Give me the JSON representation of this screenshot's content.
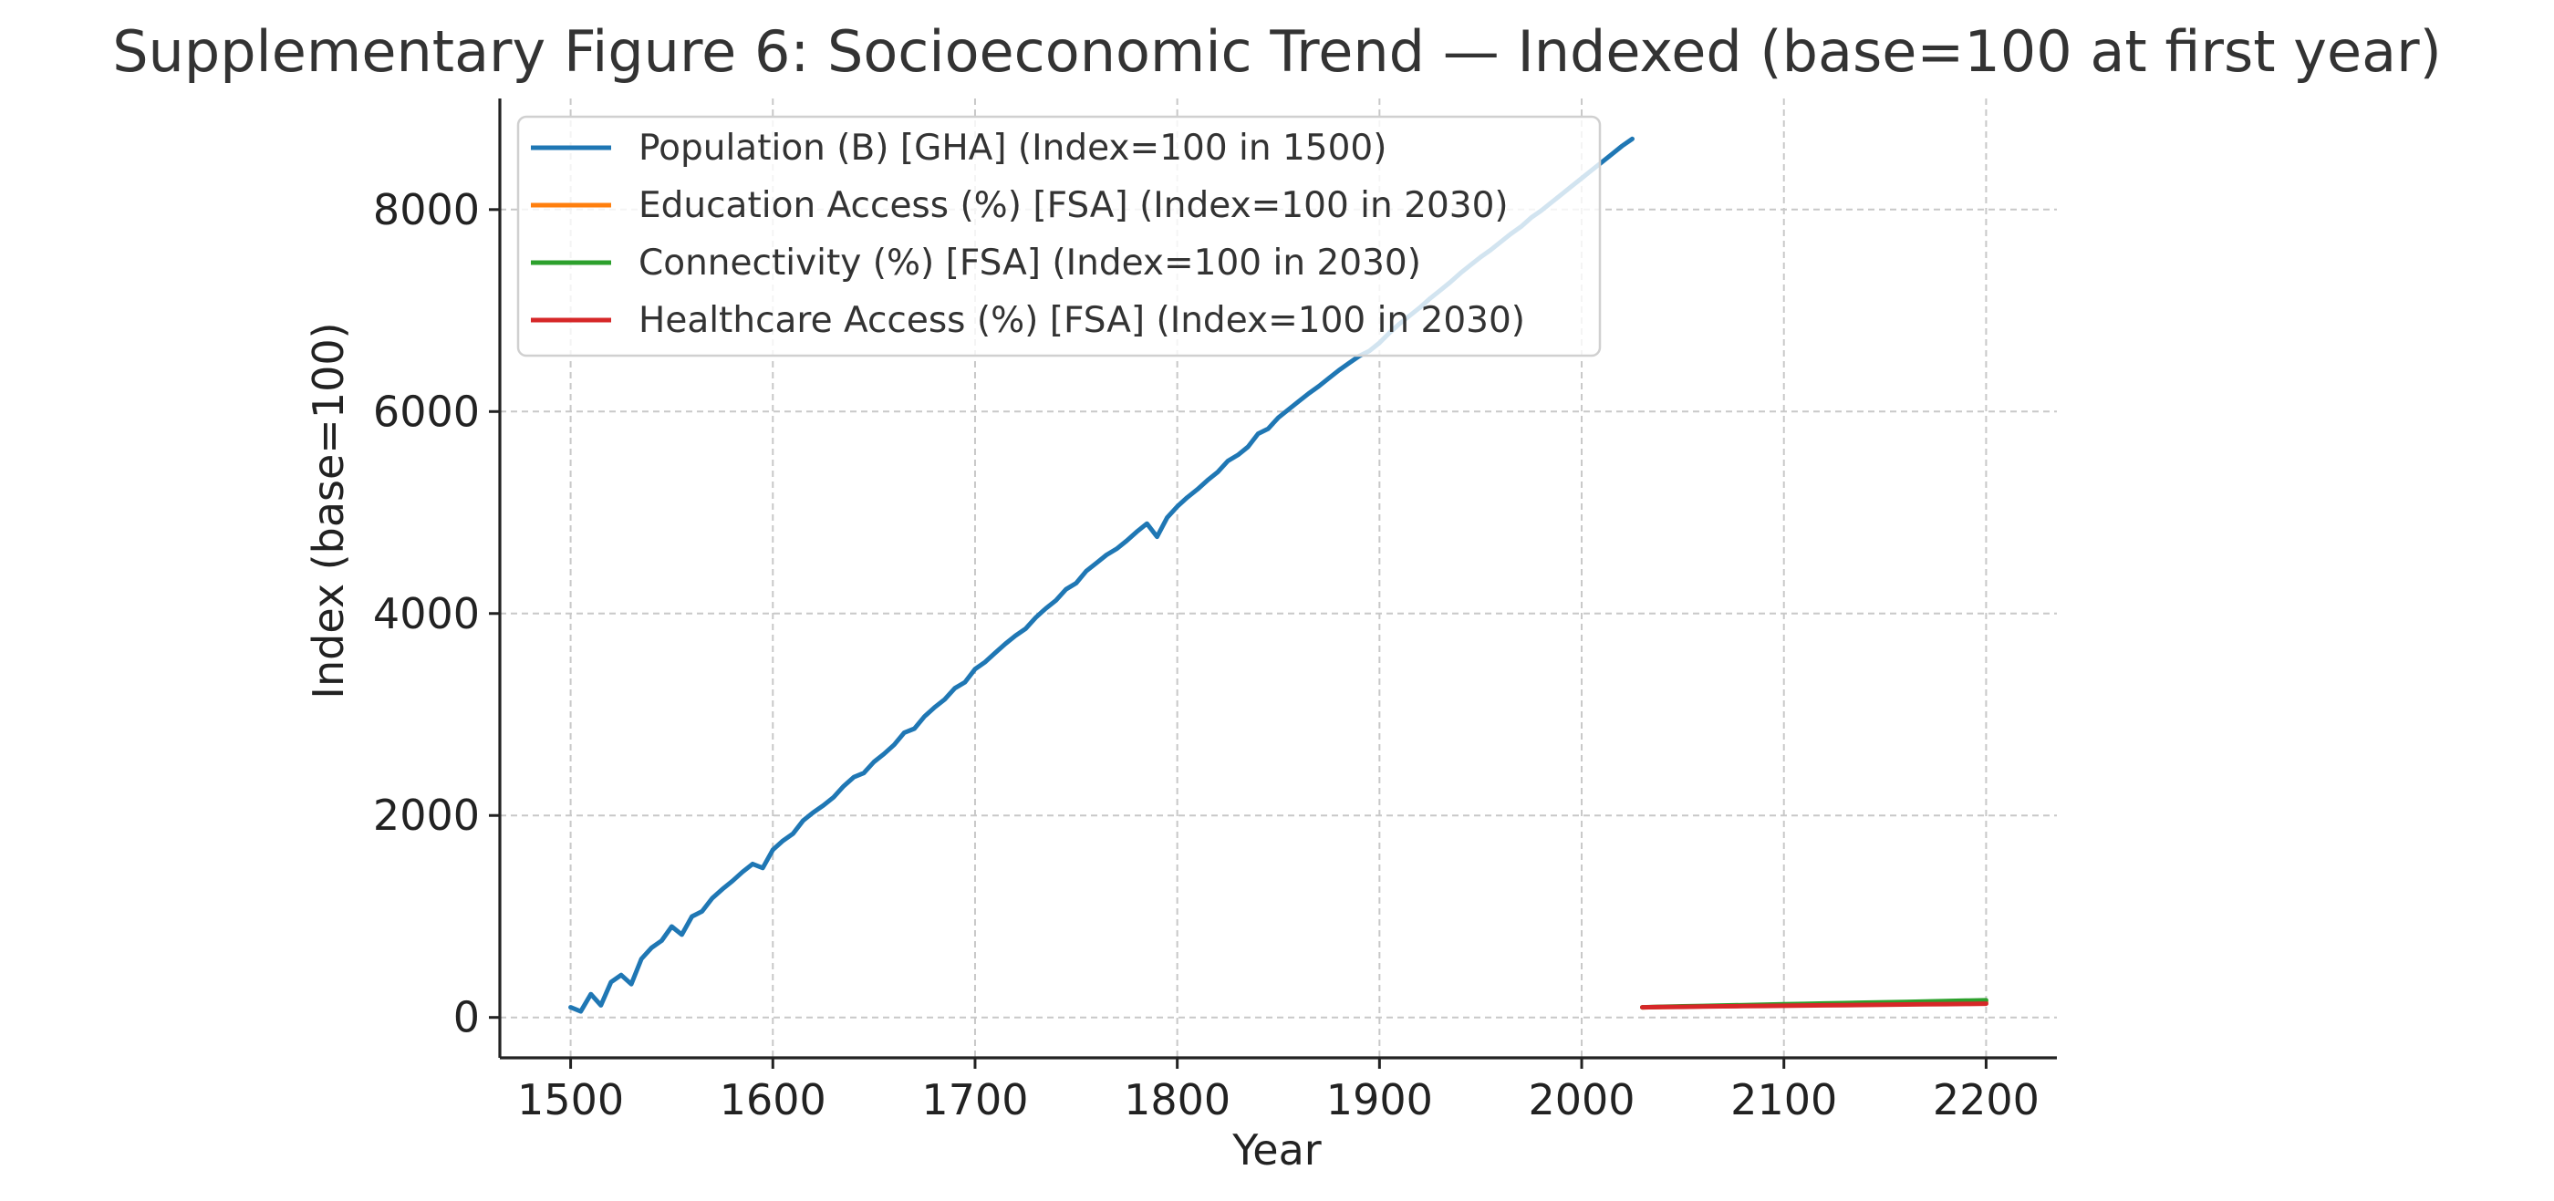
{
  "chart_data": {
    "type": "line",
    "title": "Supplementary Figure 6: Socioeconomic Trend — Indexed (base=100 at first year)",
    "xlabel": "Year",
    "ylabel": "Index (base=100)",
    "xlim": [
      1465,
      2235
    ],
    "ylim": [
      -400,
      9100
    ],
    "xticks": [
      1500,
      1600,
      1700,
      1800,
      1900,
      2000,
      2100,
      2200
    ],
    "yticks": [
      0,
      2000,
      4000,
      6000,
      8000
    ],
    "grid": true,
    "legend_position": "upper-left",
    "series": [
      {
        "name": "Population (B) [GHA] (Index=100 in 1500)",
        "color": "#1f77b4",
        "x": [
          1500,
          1505,
          1510,
          1515,
          1520,
          1525,
          1530,
          1535,
          1540,
          1545,
          1550,
          1555,
          1560,
          1565,
          1570,
          1575,
          1580,
          1585,
          1590,
          1595,
          1600,
          1605,
          1610,
          1615,
          1620,
          1625,
          1630,
          1635,
          1640,
          1645,
          1650,
          1655,
          1660,
          1665,
          1670,
          1675,
          1680,
          1685,
          1690,
          1695,
          1700,
          1705,
          1710,
          1715,
          1720,
          1725,
          1730,
          1735,
          1740,
          1745,
          1750,
          1755,
          1760,
          1765,
          1770,
          1775,
          1780,
          1785,
          1790,
          1795,
          1800,
          1805,
          1810,
          1815,
          1820,
          1825,
          1830,
          1835,
          1840,
          1845,
          1850,
          1855,
          1860,
          1865,
          1870,
          1875,
          1880,
          1885,
          1890,
          1895,
          1900,
          1905,
          1910,
          1915,
          1920,
          1925,
          1930,
          1935,
          1940,
          1945,
          1950,
          1955,
          1960,
          1965,
          1970,
          1975,
          1980,
          1985,
          1990,
          1995,
          2000,
          2005,
          2010,
          2015,
          2020,
          2025
        ],
        "values": [
          100,
          60,
          230,
          120,
          350,
          420,
          330,
          580,
          690,
          760,
          900,
          820,
          1000,
          1050,
          1180,
          1270,
          1350,
          1440,
          1520,
          1480,
          1660,
          1750,
          1820,
          1950,
          2030,
          2100,
          2180,
          2290,
          2380,
          2420,
          2530,
          2610,
          2700,
          2820,
          2860,
          2980,
          3070,
          3150,
          3260,
          3320,
          3450,
          3520,
          3610,
          3700,
          3780,
          3850,
          3960,
          4050,
          4130,
          4240,
          4300,
          4420,
          4500,
          4580,
          4640,
          4720,
          4810,
          4890,
          4760,
          4950,
          5060,
          5150,
          5230,
          5320,
          5400,
          5510,
          5570,
          5650,
          5780,
          5830,
          5940,
          6020,
          6100,
          6180,
          6250,
          6330,
          6410,
          6480,
          6550,
          6600,
          6680,
          6780,
          6870,
          6950,
          7030,
          7120,
          7200,
          7280,
          7370,
          7450,
          7530,
          7600,
          7680,
          7760,
          7830,
          7920,
          7990,
          8070,
          8150,
          8230,
          8310,
          8390,
          8470,
          8550,
          8630,
          8700
        ]
      },
      {
        "name": "Education Access (%) [FSA] (Index=100 in 2030)",
        "color": "#ff7f0e",
        "x": [
          2030,
          2040,
          2050,
          2060,
          2070,
          2080,
          2090,
          2100,
          2110,
          2120,
          2130,
          2140,
          2150,
          2160,
          2170,
          2180,
          2190,
          2200
        ],
        "values": [
          100,
          104,
          107,
          110,
          113,
          116,
          119,
          122,
          125,
          128,
          131,
          134,
          137,
          140,
          143,
          146,
          149,
          152
        ]
      },
      {
        "name": "Connectivity (%) [FSA] (Index=100 in 2030)",
        "color": "#2ca02c",
        "x": [
          2030,
          2040,
          2050,
          2060,
          2070,
          2080,
          2090,
          2100,
          2110,
          2120,
          2130,
          2140,
          2150,
          2160,
          2170,
          2180,
          2190,
          2200
        ],
        "values": [
          100,
          106,
          110,
          114,
          118,
          122,
          126,
          130,
          134,
          138,
          142,
          146,
          150,
          154,
          158,
          162,
          166,
          170
        ]
      },
      {
        "name": "Healthcare Access (%) [FSA] (Index=100 in 2030)",
        "color": "#d62728",
        "x": [
          2030,
          2040,
          2050,
          2060,
          2070,
          2080,
          2090,
          2100,
          2110,
          2120,
          2130,
          2140,
          2150,
          2160,
          2170,
          2180,
          2190,
          2200
        ],
        "values": [
          100,
          103,
          105,
          108,
          110,
          112,
          114,
          116,
          118,
          120,
          122,
          124,
          126,
          128,
          130,
          132,
          134,
          136
        ]
      }
    ]
  }
}
